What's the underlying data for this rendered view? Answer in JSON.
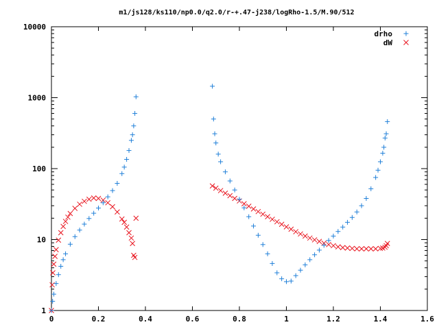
{
  "chart_data": {
    "type": "scatter",
    "title": "m1/js128/ks110/np0.0/q2.0/r-+.47-j238/logRho-1.5/M.90/512",
    "xlabel": "",
    "ylabel": "",
    "xlim": [
      0,
      1.6
    ],
    "ylim": [
      1,
      10000
    ],
    "yscale": "log",
    "grid": false,
    "legend_position": "top-right",
    "x_ticks": [
      "0",
      "0.2",
      "0.4",
      "0.6",
      "0.8",
      "1",
      "1.2",
      "1.4",
      "1.6"
    ],
    "y_ticks": [
      "1",
      "10",
      "100",
      "1000",
      "10000"
    ],
    "series": [
      {
        "name": "drho",
        "marker": "plus",
        "color": "#1f7fd8",
        "x": [
          0.0,
          0.005,
          0.01,
          0.02,
          0.03,
          0.04,
          0.05,
          0.06,
          0.08,
          0.1,
          0.12,
          0.14,
          0.16,
          0.18,
          0.2,
          0.22,
          0.24,
          0.26,
          0.28,
          0.3,
          0.31,
          0.32,
          0.33,
          0.34,
          0.345,
          0.35,
          0.355,
          0.36,
          0.685,
          0.69,
          0.695,
          0.7,
          0.71,
          0.72,
          0.74,
          0.76,
          0.78,
          0.8,
          0.82,
          0.84,
          0.86,
          0.88,
          0.9,
          0.92,
          0.94,
          0.96,
          0.98,
          1.0,
          1.02,
          1.04,
          1.06,
          1.08,
          1.1,
          1.12,
          1.14,
          1.16,
          1.18,
          1.2,
          1.22,
          1.24,
          1.26,
          1.28,
          1.3,
          1.32,
          1.34,
          1.36,
          1.38,
          1.39,
          1.4,
          1.41,
          1.415,
          1.42,
          1.425,
          1.43
        ],
        "y": [
          1.0,
          1.35,
          1.7,
          2.4,
          3.2,
          4.2,
          5.2,
          6.3,
          8.6,
          11.0,
          13.6,
          16.5,
          19.8,
          23.5,
          27.8,
          33.0,
          40.0,
          49.0,
          62.0,
          85.0,
          105.0,
          135.0,
          180.0,
          250.0,
          300.0,
          400.0,
          600.0,
          1030.0,
          1450.0,
          500.0,
          310.0,
          230.0,
          160.0,
          125.0,
          90.0,
          67.0,
          50.0,
          37.0,
          28.0,
          21.0,
          15.5,
          11.5,
          8.5,
          6.3,
          4.6,
          3.4,
          2.8,
          2.55,
          2.6,
          3.1,
          3.7,
          4.4,
          5.2,
          6.1,
          7.1,
          8.3,
          9.7,
          11.2,
          13.0,
          15.0,
          17.5,
          20.5,
          24.5,
          30.0,
          38.0,
          52.0,
          75.0,
          95.0,
          125.0,
          165.0,
          200.0,
          270.0,
          310.0,
          460.0
        ]
      },
      {
        "name": "dW",
        "marker": "x",
        "color": "#e8141e",
        "x": [
          0.0,
          0.003,
          0.006,
          0.01,
          0.015,
          0.02,
          0.03,
          0.04,
          0.05,
          0.06,
          0.07,
          0.08,
          0.1,
          0.12,
          0.14,
          0.16,
          0.18,
          0.2,
          0.22,
          0.24,
          0.26,
          0.28,
          0.3,
          0.31,
          0.32,
          0.33,
          0.34,
          0.345,
          0.35,
          0.355,
          0.36,
          0.685,
          0.7,
          0.72,
          0.74,
          0.76,
          0.78,
          0.8,
          0.82,
          0.84,
          0.86,
          0.88,
          0.9,
          0.92,
          0.94,
          0.96,
          0.98,
          1.0,
          1.02,
          1.04,
          1.06,
          1.08,
          1.1,
          1.12,
          1.14,
          1.16,
          1.18,
          1.2,
          1.22,
          1.24,
          1.26,
          1.28,
          1.3,
          1.32,
          1.34,
          1.36,
          1.38,
          1.4,
          1.41,
          1.42,
          1.425,
          1.43
        ],
        "y": [
          1.0,
          2.3,
          3.4,
          4.5,
          5.8,
          7.2,
          9.8,
          12.5,
          15.3,
          18.0,
          20.7,
          23.3,
          27.5,
          31.5,
          34.6,
          37.0,
          38.5,
          38.0,
          36.0,
          33.0,
          29.0,
          24.5,
          19.5,
          17.5,
          15.0,
          12.5,
          10.5,
          8.8,
          6.0,
          5.6,
          20.0,
          57.0,
          53.0,
          49.0,
          45.0,
          41.5,
          38.0,
          35.0,
          32.0,
          29.5,
          27.0,
          24.8,
          22.8,
          21.0,
          19.3,
          17.8,
          16.4,
          15.1,
          14.0,
          12.9,
          12.0,
          11.2,
          10.5,
          9.9,
          9.4,
          8.9,
          8.5,
          8.2,
          7.9,
          7.7,
          7.6,
          7.5,
          7.4,
          7.4,
          7.4,
          7.4,
          7.4,
          7.5,
          7.6,
          7.8,
          8.2,
          8.8
        ]
      }
    ]
  }
}
